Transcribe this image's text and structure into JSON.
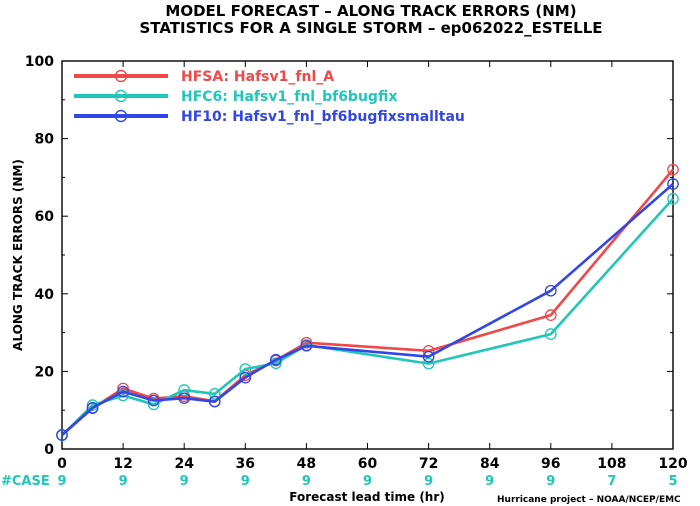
{
  "titles": {
    "line1": "MODEL FORECAST – ALONG TRACK ERRORS (NM)",
    "line2": "STATISTICS FOR A SINGLE STORM – ep062022_ESTELLE"
  },
  "credit": "Hurricane project – NOAA/NCEP/EMC",
  "case_label": "#CASE",
  "colors": {
    "case": "#1fc7b8",
    "axis": "#000000"
  },
  "chart_data": {
    "type": "line",
    "title": "MODEL FORECAST – ALONG TRACK ERRORS (NM)",
    "subtitle": "STATISTICS FOR A SINGLE STORM – ep062022_ESTELLE",
    "xlabel": "Forecast lead time (hr)",
    "ylabel": "ALONG TRACK ERRORS (NM)",
    "xlim": [
      0,
      120
    ],
    "ylim": [
      0,
      100
    ],
    "x_ticks": [
      0,
      12,
      24,
      36,
      48,
      60,
      72,
      84,
      96,
      108,
      120
    ],
    "y_ticks": [
      0,
      20,
      40,
      60,
      80,
      100
    ],
    "legend_position": "top-left",
    "series": [
      {
        "name": "HFSA: Hafsv1_fnl_A",
        "color": "#f04848",
        "x": [
          0,
          6,
          12,
          18,
          24,
          30,
          36,
          42,
          48,
          72,
          96,
          120
        ],
        "y": [
          3.6,
          10.5,
          15.6,
          13.0,
          13.6,
          12.3,
          19.0,
          22.8,
          27.4,
          25.3,
          34.5,
          72.0
        ]
      },
      {
        "name": "HFC6: Hafsv1_fnl_bf6bugfix",
        "color": "#1fc7b8",
        "x": [
          0,
          6,
          12,
          18,
          24,
          30,
          36,
          42,
          48,
          72,
          96,
          120
        ],
        "y": [
          3.5,
          11.3,
          13.8,
          11.5,
          15.2,
          14.2,
          20.6,
          22.1,
          26.8,
          22.0,
          29.6,
          64.5
        ]
      },
      {
        "name": "HF10: Hafsv1_fnl_bf6bugfixsmalltau",
        "color": "#3246e6",
        "x": [
          0,
          6,
          12,
          18,
          24,
          30,
          36,
          42,
          48,
          72,
          96,
          120
        ],
        "y": [
          3.6,
          10.6,
          14.8,
          12.5,
          13.1,
          12.2,
          18.4,
          23.0,
          26.6,
          23.8,
          40.8,
          68.3
        ]
      }
    ],
    "cases": {
      "x": [
        0,
        12,
        24,
        36,
        48,
        60,
        72,
        84,
        96,
        108,
        120
      ],
      "labels": [
        "9",
        "9",
        "9",
        "9",
        "9",
        "9",
        "9",
        "9",
        "9",
        "7",
        "5"
      ]
    }
  }
}
